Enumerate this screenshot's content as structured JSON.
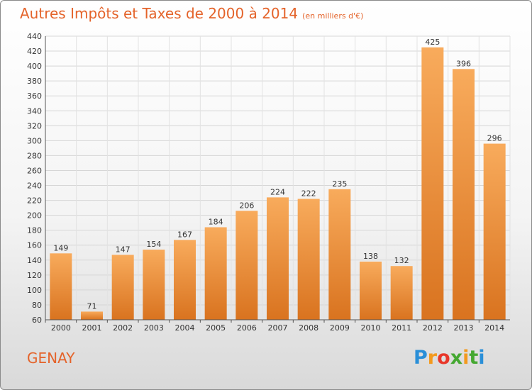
{
  "title": "Autres Impôts et Taxes de 2000 à 2014",
  "subtitle": "(en milliers d'€)",
  "city": "GENAY",
  "logo": {
    "letters": [
      "P",
      "r",
      "o",
      "x",
      "i",
      "t",
      "i"
    ],
    "colors": [
      "#2a8fd8",
      "#f39a1e",
      "#e8372a",
      "#45a832",
      "#f39a1e",
      "#45a832",
      "#2a8fd8"
    ]
  },
  "colors": {
    "accent": "#e4632a",
    "bar_light": "#f8ab5c",
    "bar_dark": "#d9731f"
  },
  "chart_data": {
    "type": "bar",
    "title": "Autres Impôts et Taxes de 2000 à 2014",
    "subtitle": "(en milliers d'€)",
    "categories": [
      "2000",
      "2001",
      "2002",
      "2003",
      "2004",
      "2005",
      "2006",
      "2007",
      "2008",
      "2009",
      "2010",
      "2011",
      "2012",
      "2013",
      "2014"
    ],
    "values": [
      149,
      71,
      147,
      154,
      167,
      184,
      206,
      224,
      222,
      235,
      138,
      132,
      425,
      396,
      296
    ],
    "ylim": [
      60,
      440
    ],
    "yticks": [
      60,
      80,
      100,
      120,
      140,
      160,
      180,
      200,
      220,
      240,
      260,
      280,
      300,
      320,
      340,
      360,
      380,
      400,
      420,
      440
    ],
    "grid": true,
    "xlabel": "",
    "ylabel": ""
  }
}
